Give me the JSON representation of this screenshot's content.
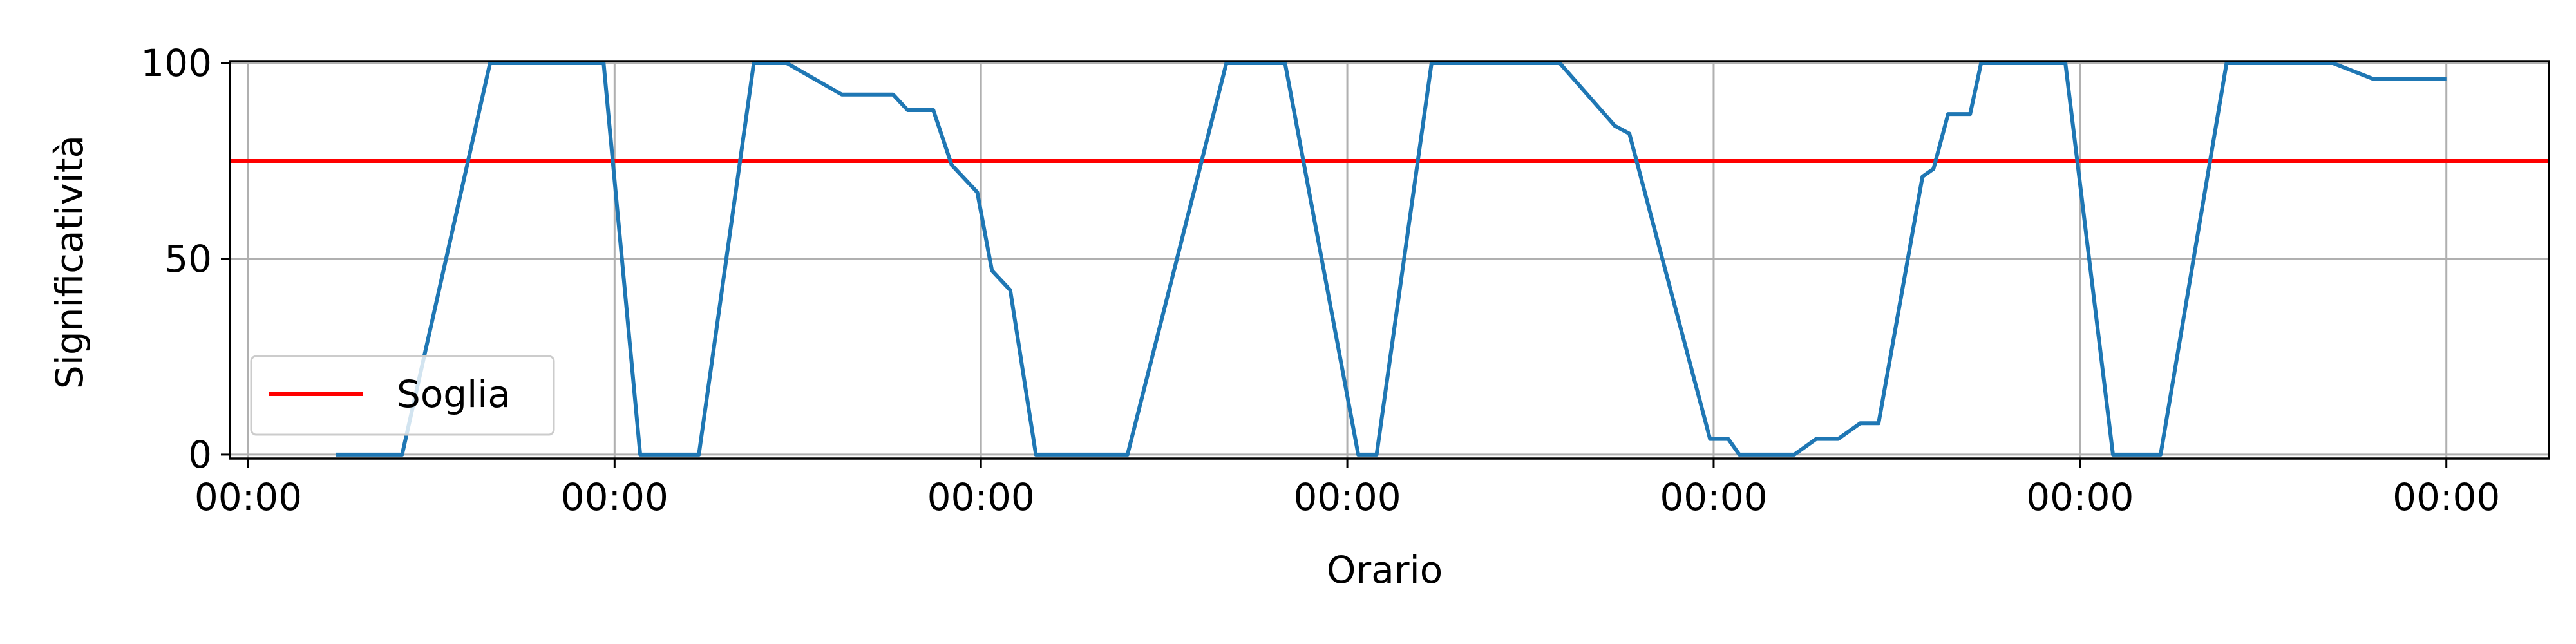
{
  "chart_data": {
    "type": "line",
    "xlabel": "Orario",
    "ylabel": "Significatività",
    "x_tick_labels": [
      "00:00",
      "00:00",
      "00:00",
      "00:00",
      "00:00",
      "00:00",
      "00:00"
    ],
    "y_ticks": [
      0,
      50,
      100
    ],
    "xlim": [
      -0.05,
      6.28
    ],
    "ylim": [
      -1,
      100.5
    ],
    "grid": true,
    "legend_position": "lower-left",
    "threshold": {
      "name": "Soglia",
      "value": 75,
      "color": "#ff0000"
    },
    "series": [
      {
        "color": "#1f77b4",
        "x": [
          0.24,
          0.42,
          0.66,
          0.97,
          1.07,
          1.23,
          1.38,
          1.47,
          1.62,
          1.76,
          1.8,
          1.87,
          1.92,
          1.99,
          2.03,
          2.08,
          2.15,
          2.25,
          2.4,
          2.67,
          2.83,
          3.03,
          3.08,
          3.23,
          3.39,
          3.58,
          3.73,
          3.77,
          3.86,
          3.99,
          4.04,
          4.07,
          4.22,
          4.28,
          4.34,
          4.4,
          4.45,
          4.57,
          4.6,
          4.64,
          4.7,
          4.73,
          4.96,
          5.09,
          5.22,
          5.4,
          5.69,
          5.8,
          5.9,
          6.0
        ],
        "y": [
          0,
          0,
          100,
          100,
          0,
          0,
          100,
          100,
          92,
          92,
          88,
          88,
          74,
          67,
          47,
          42,
          0,
          0,
          0,
          100,
          100,
          0,
          0,
          100,
          100,
          100,
          84,
          82,
          50,
          4,
          4,
          0,
          0,
          4,
          4,
          8,
          8,
          71,
          73,
          87,
          87,
          100,
          100,
          0,
          0,
          100,
          100,
          96,
          96,
          96
        ]
      }
    ]
  }
}
